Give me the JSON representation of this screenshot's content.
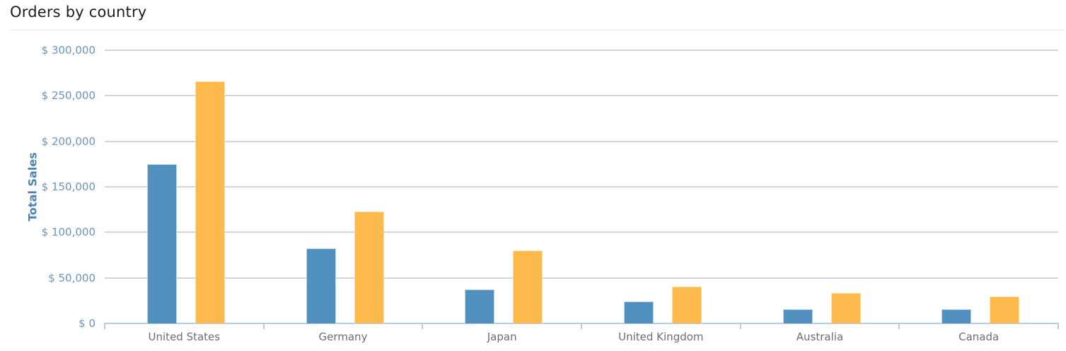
{
  "header": {
    "title": "Orders by country"
  },
  "chart_data": {
    "type": "bar",
    "title": "Orders by country",
    "xlabel": "",
    "ylabel": "Total Sales",
    "legend": "none",
    "grid": "horizontal",
    "categories": [
      "United States",
      "Germany",
      "Japan",
      "United Kingdom",
      "Australia",
      "Canada"
    ],
    "series": [
      {
        "name": "series-blue",
        "color": "#5290c0",
        "border_color": "#bad5ea",
        "values": [
          175000,
          82000,
          37500,
          24000,
          15500,
          15500
        ]
      },
      {
        "name": "series-orange",
        "color": "#feb94d",
        "border_color": "#fee0a1",
        "values": [
          266000,
          123000,
          80000,
          40500,
          33500,
          29500
        ]
      }
    ],
    "ylim": [
      0,
      300000
    ],
    "yticks": [
      {
        "value": 0,
        "label": "$ 0"
      },
      {
        "value": 50000,
        "label": "$ 50,000"
      },
      {
        "value": 100000,
        "label": "$ 100,000"
      },
      {
        "value": 150000,
        "label": "$ 150,000"
      },
      {
        "value": 200000,
        "label": "$ 200,000"
      },
      {
        "value": 250000,
        "label": "$ 250,000"
      },
      {
        "value": 300000,
        "label": "$ 300,000"
      }
    ]
  },
  "colors": {
    "background": "#ffffff",
    "title_text": "#1d1d1d",
    "divider": "#ececec",
    "gridline": "#d5d5d5",
    "axis_line": "#b4cbe3",
    "ytick_text": "#6b95c0",
    "yaxis_title_text": "#4d83b2",
    "category_text": "#6e6e6e"
  }
}
